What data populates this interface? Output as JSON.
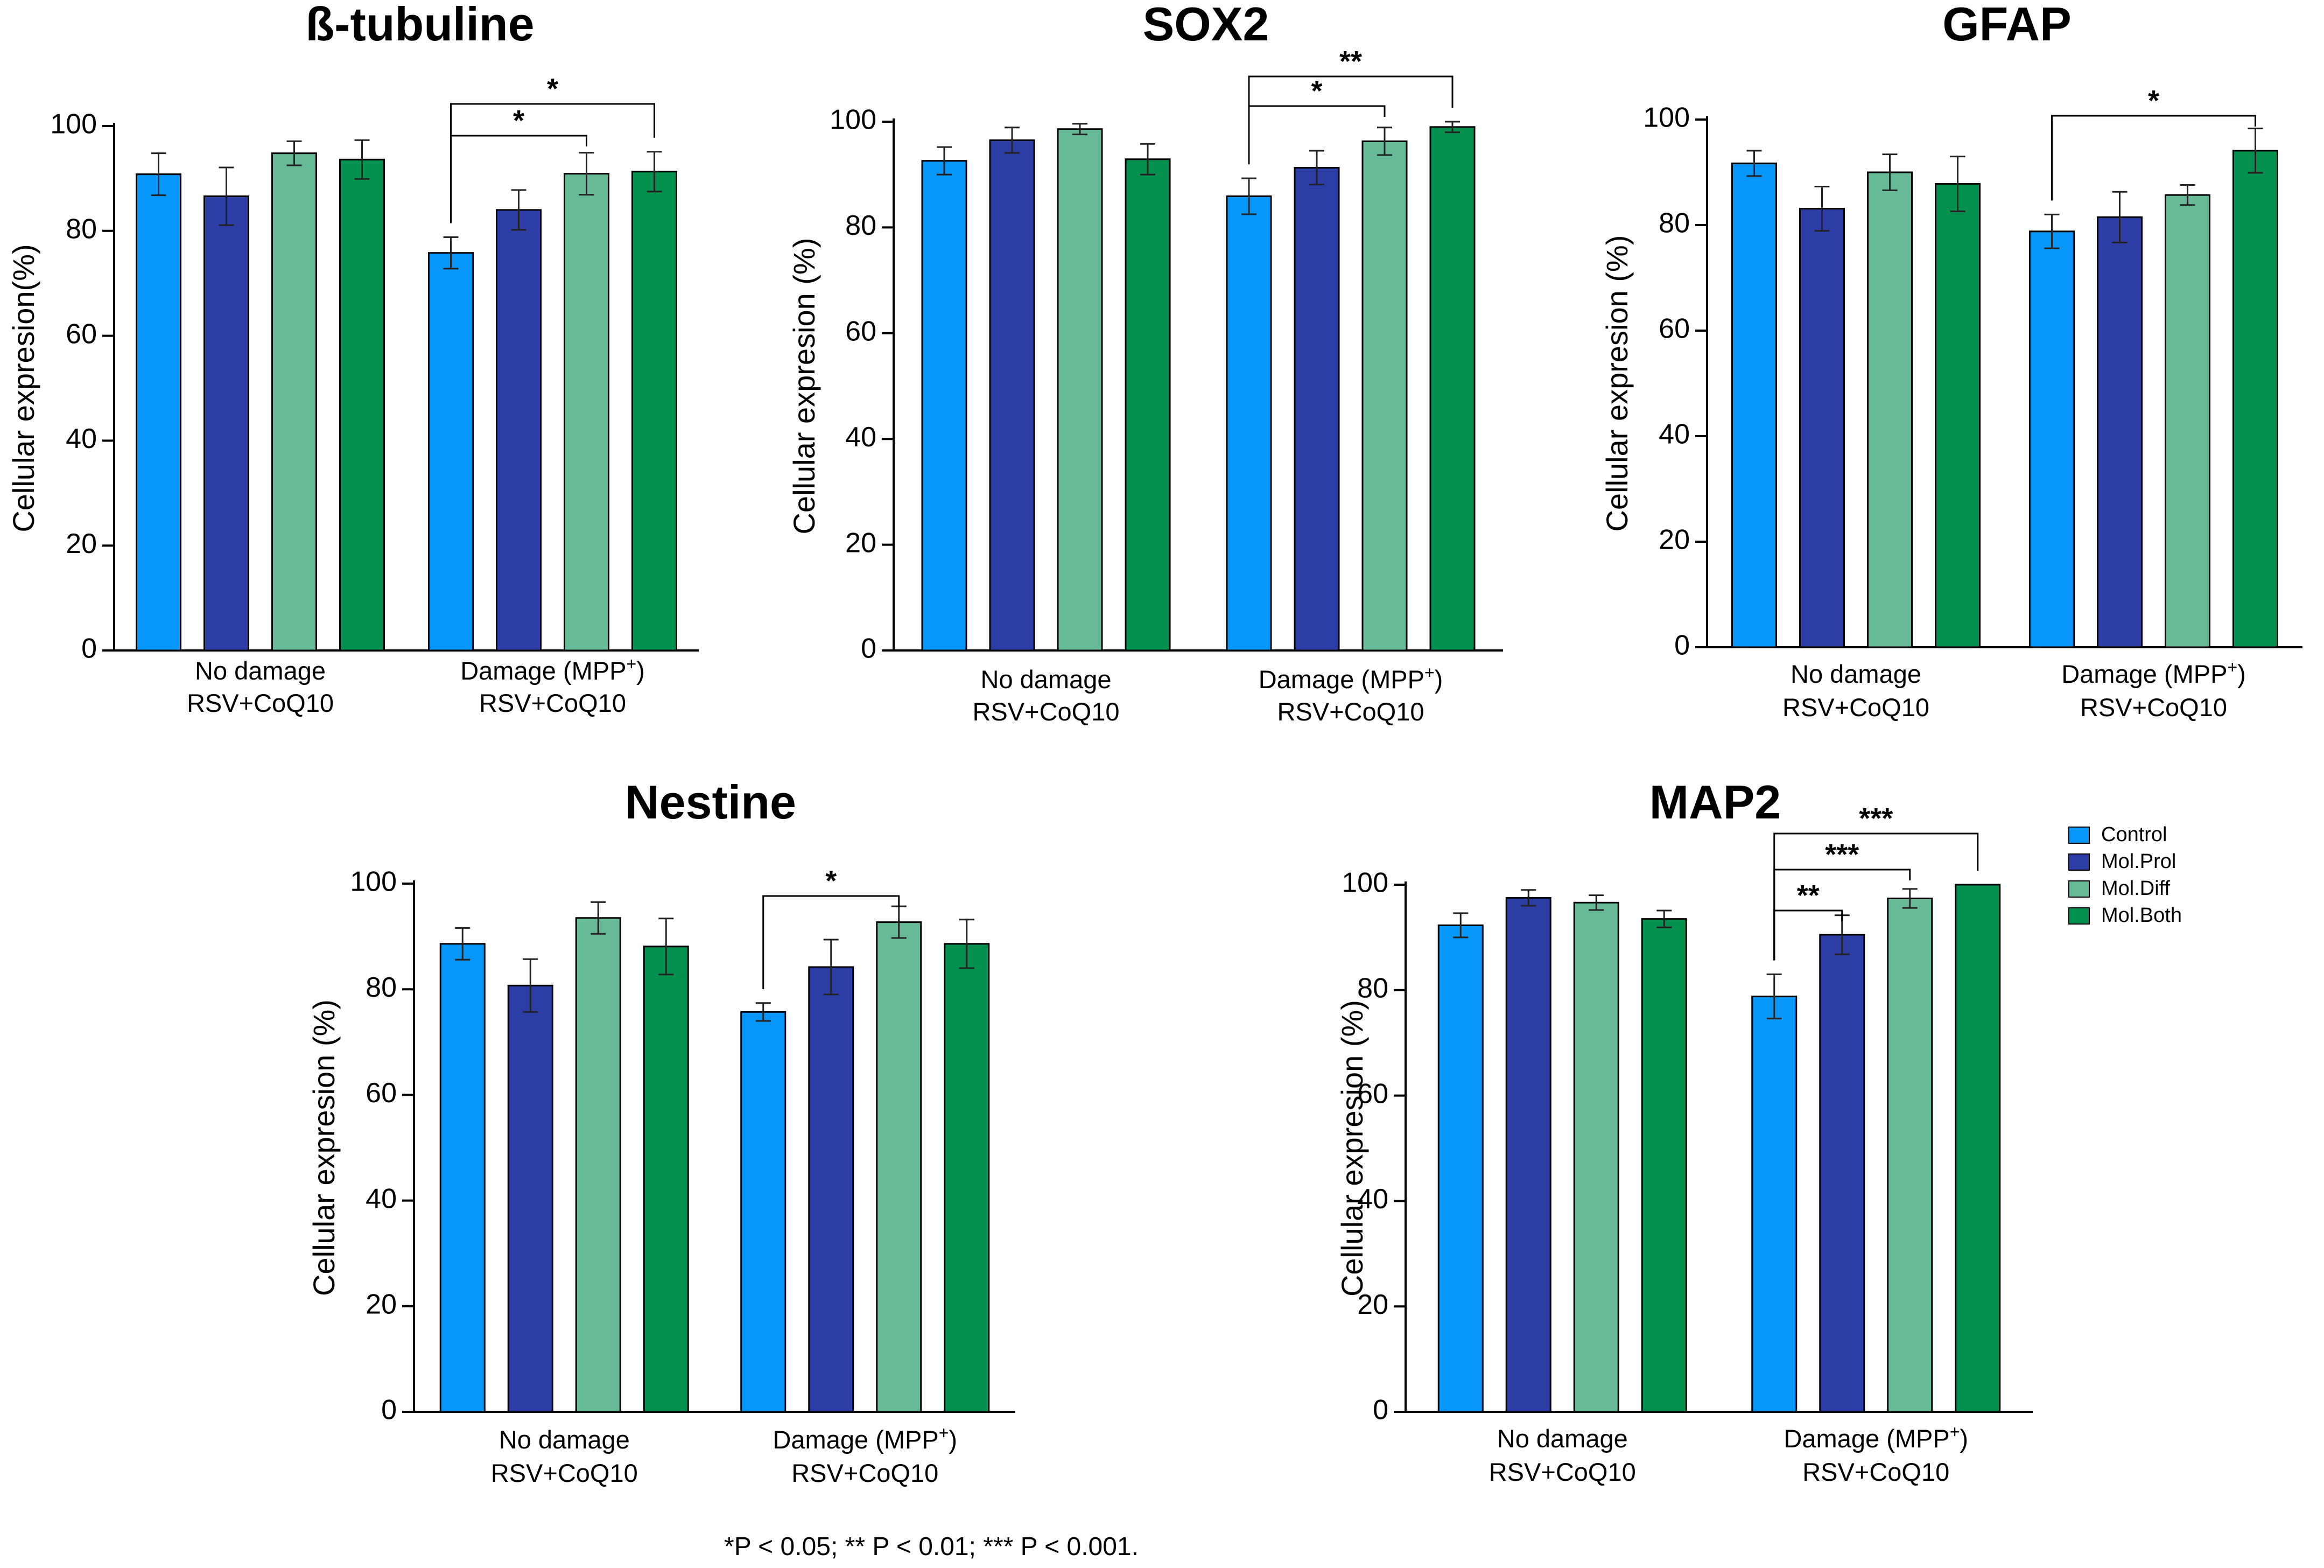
{
  "colors": {
    "Control": "#0796FA",
    "Mol.Prol": "#2C3EA6",
    "Mol.Diff": "#66BB96",
    "Mol.Both": "#04904F"
  },
  "legend": [
    "Control",
    "Mol.Prol",
    "Mol.Diff",
    "Mol.Both"
  ],
  "footnote": "*P < 0.05; ** P < 0.01; *** P < 0.001.",
  "chart_data": [
    {
      "type": "bar",
      "title": "ß-tubuline",
      "ylabel": "Cellular expresion(%)",
      "ylim": [
        0,
        100
      ],
      "yticks": [
        "0",
        "20",
        "40",
        "60",
        "80",
        "100"
      ],
      "groups": [
        {
          "line1": "No damage",
          "line2": "RSV+CoQ10",
          "sup": ""
        },
        {
          "line1": "Damage (MPP",
          "line2": "RSV+CoQ10",
          "sup": "+",
          "close": ")"
        }
      ],
      "series": [
        {
          "name": "Control",
          "values": [
            90.8,
            75.8
          ],
          "errors": [
            4,
            3
          ]
        },
        {
          "name": "Mol.Prol",
          "values": [
            86.6,
            84.0
          ],
          "errors": [
            5.5,
            3.8
          ]
        },
        {
          "name": "Mol.Diff",
          "values": [
            94.8,
            90.9
          ],
          "errors": [
            2.3,
            4
          ]
        },
        {
          "name": "Mol.Both",
          "values": [
            93.6,
            91.3
          ],
          "errors": [
            3.7,
            3.8
          ]
        }
      ],
      "significance": [
        {
          "from": [
            1,
            0
          ],
          "to": [
            1,
            2
          ],
          "label": "*"
        },
        {
          "from": [
            1,
            0
          ],
          "to": [
            1,
            3
          ],
          "label": "*"
        }
      ]
    },
    {
      "type": "bar",
      "title": "SOX2",
      "ylabel": "Cellular expresion (%)",
      "ylim": [
        0,
        100
      ],
      "yticks": [
        "0",
        "20",
        "40",
        "60",
        "80",
        "100"
      ],
      "groups": [
        {
          "line1": "No damage",
          "line2": "RSV+CoQ10",
          "sup": ""
        },
        {
          "line1": "Damage (MPP",
          "line2": "RSV+CoQ10",
          "sup": "+",
          "close": ")"
        }
      ],
      "series": [
        {
          "name": "Control",
          "values": [
            92.6,
            85.9
          ],
          "errors": [
            2.6,
            3.4
          ]
        },
        {
          "name": "Mol.Prol",
          "values": [
            96.5,
            91.3
          ],
          "errors": [
            2.4,
            3.2
          ]
        },
        {
          "name": "Mol.Diff",
          "values": [
            98.6,
            96.3
          ],
          "errors": [
            1,
            2.6
          ]
        },
        {
          "name": "Mol.Both",
          "values": [
            92.9,
            99.0
          ],
          "errors": [
            2.9,
            1
          ]
        }
      ],
      "significance": [
        {
          "from": [
            1,
            0
          ],
          "to": [
            1,
            2
          ],
          "label": "*"
        },
        {
          "from": [
            1,
            0
          ],
          "to": [
            1,
            3
          ],
          "label": "**"
        }
      ]
    },
    {
      "type": "bar",
      "title": "GFAP",
      "ylabel": "Cellular expresion (%)",
      "ylim": [
        0,
        100
      ],
      "yticks": [
        "0",
        "20",
        "40",
        "60",
        "80",
        "100"
      ],
      "groups": [
        {
          "line1": "No damage",
          "line2": "RSV+CoQ10",
          "sup": ""
        },
        {
          "line1": "Damage (MPP",
          "line2": "RSV+CoQ10",
          "sup": "+",
          "close": ")"
        }
      ],
      "series": [
        {
          "name": "Control",
          "values": [
            91.7,
            78.8
          ],
          "errors": [
            2.4,
            3.2
          ]
        },
        {
          "name": "Mol.Prol",
          "values": [
            83.1,
            81.5
          ],
          "errors": [
            4.2,
            4.8
          ]
        },
        {
          "name": "Mol.Diff",
          "values": [
            90.0,
            85.7
          ],
          "errors": [
            3.4,
            1.9
          ]
        },
        {
          "name": "Mol.Both",
          "values": [
            87.8,
            94.1
          ],
          "errors": [
            5.2,
            4.2
          ]
        }
      ],
      "significance": [
        {
          "from": [
            1,
            0
          ],
          "to": [
            1,
            3
          ],
          "label": "*"
        }
      ]
    },
    {
      "type": "bar",
      "title": "Nestine",
      "ylabel": "Cellular expresion (%)",
      "ylim": [
        0,
        100
      ],
      "yticks": [
        "0",
        "20",
        "40",
        "60",
        "80",
        "100"
      ],
      "groups": [
        {
          "line1": "No damage",
          "line2": "RSV+CoQ10",
          "sup": ""
        },
        {
          "line1": "Damage (MPP",
          "line2": "RSV+CoQ10",
          "sup": "+",
          "close": ")"
        }
      ],
      "series": [
        {
          "name": "Control",
          "values": [
            88.6,
            75.7
          ],
          "errors": [
            3,
            1.7
          ]
        },
        {
          "name": "Mol.Prol",
          "values": [
            80.7,
            84.2
          ],
          "errors": [
            5,
            5.2
          ]
        },
        {
          "name": "Mol.Diff",
          "values": [
            93.5,
            92.7
          ],
          "errors": [
            3,
            3
          ]
        },
        {
          "name": "Mol.Both",
          "values": [
            88.1,
            88.6
          ],
          "errors": [
            5.3,
            4.6
          ]
        }
      ],
      "significance": [
        {
          "from": [
            1,
            0
          ],
          "to": [
            1,
            2
          ],
          "label": "*"
        }
      ]
    },
    {
      "type": "bar",
      "title": "MAP2",
      "ylabel": "Cellular expresion (%)",
      "ylim": [
        0,
        100
      ],
      "yticks": [
        "0",
        "20",
        "40",
        "60",
        "80",
        "100"
      ],
      "groups": [
        {
          "line1": "No damage",
          "line2": "RSV+CoQ10",
          "sup": ""
        },
        {
          "line1": "Damage (MPP",
          "line2": "RSV+CoQ10",
          "sup": "+",
          "close": ")"
        }
      ],
      "series": [
        {
          "name": "Control",
          "values": [
            92.3,
            78.8
          ],
          "errors": [
            2.3,
            4.2
          ]
        },
        {
          "name": "Mol.Prol",
          "values": [
            97.5,
            90.5
          ],
          "errors": [
            1.5,
            3.7
          ]
        },
        {
          "name": "Mol.Diff",
          "values": [
            96.6,
            97.4
          ],
          "errors": [
            1.4,
            1.8
          ]
        },
        {
          "name": "Mol.Both",
          "values": [
            93.5,
            100.0
          ],
          "errors": [
            1.6,
            0
          ]
        }
      ],
      "significance": [
        {
          "from": [
            1,
            0
          ],
          "to": [
            1,
            1
          ],
          "label": "**"
        },
        {
          "from": [
            1,
            0
          ],
          "to": [
            1,
            2
          ],
          "label": "***"
        },
        {
          "from": [
            1,
            0
          ],
          "to": [
            1,
            3
          ],
          "label": "***"
        }
      ]
    }
  ]
}
